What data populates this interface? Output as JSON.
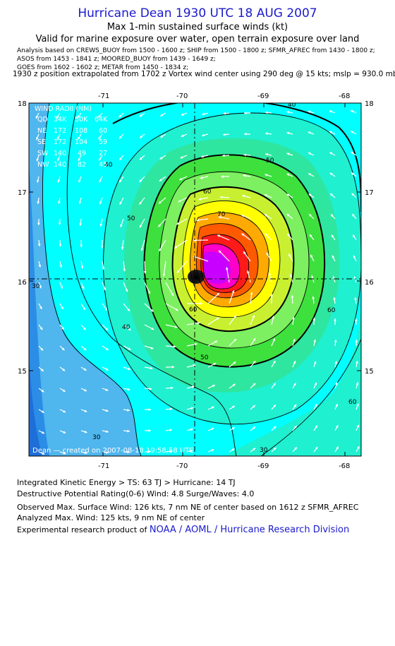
{
  "header": {
    "title": "Hurricane Dean 1930 UTC 18 AUG 2007",
    "subtitle": "Max 1-min sustained surface winds (kt)",
    "subtitle2": "Valid for marine exposure over water, open terrain exposure over land",
    "analysis_line1": "Analysis based on  CREWS_BUOY from 1500 - 1600 z;  SHIP from 1500 - 1800 z;  SFMR_AFREC from 1430 - 1800 z;",
    "analysis_line2": "ASOS from 1453 - 1841 z;  MOORED_BUOY from 1439 - 1649 z;",
    "analysis_line3": "GOES from 1602 - 1602 z;  METAR from 1450 - 1834 z;",
    "position_note": "1930 z position extrapolated from 1702 z Vortex wind center using 290 deg @ 15 kts; mslp = 930.0 mb"
  },
  "map": {
    "lon_ticks": [
      "-71",
      "-70",
      "-69",
      "-68"
    ],
    "lat_ticks": [
      "18",
      "17",
      "16",
      "15"
    ],
    "lon_range": [
      -71.75,
      -67.95
    ],
    "lat_range": [
      14.0,
      18.0
    ],
    "center": {
      "lon": -69.85,
      "lat": 16.05
    },
    "contour_labels": [
      "40",
      "50",
      "60",
      "70",
      "30",
      "40",
      "50",
      "60",
      "40",
      "50",
      "60",
      "30",
      "60",
      "30"
    ],
    "credit": "Dean — created on 2007-08-18 19:58:58 UTC",
    "colors": {
      "ocean_blue": "#2b8de6",
      "light_blue": "#4fb6ee",
      "cyan": "#00ffff",
      "aqua": "#1ef0d0",
      "green_teal": "#2ee6a0",
      "light_green": "#7cf060",
      "green": "#3ee03e",
      "yellow_green": "#c8f030",
      "yellow": "#ffff00",
      "orange": "#ffaa00",
      "orange_red": "#ff5a00",
      "red": "#ff1a1a",
      "magenta": "#ff00c8",
      "purple": "#c800ff"
    }
  },
  "wind_radii": {
    "title": "WIND RADII (NM)",
    "headers": [
      "QD",
      "34K",
      "50K",
      "64K"
    ],
    "rows": [
      [
        "NE",
        "172",
        "108",
        "60"
      ],
      [
        "SE",
        "172",
        "104",
        "59"
      ],
      [
        "SW",
        "140",
        "49",
        "27"
      ],
      [
        "NW",
        "140",
        "82",
        "45"
      ]
    ]
  },
  "footer": {
    "ike": "Integrated Kinetic Energy > TS: 63 TJ   > Hurricane: 14 TJ",
    "dpr": "Destructive Potential Rating(0-6)   Wind: 4.8 Surge/Waves: 4.0",
    "observed": "Observed Max. Surface Wind: 126 kts, 7 nm NE of center based on 1612 z SFMR_AFREC",
    "analyzed": "Analyzed Max. Wind: 125 kts, 9 nm NE of center",
    "product_prefix": "Experimental research product of",
    "product_org": "NOAA / AOML / Hurricane Research Division"
  }
}
